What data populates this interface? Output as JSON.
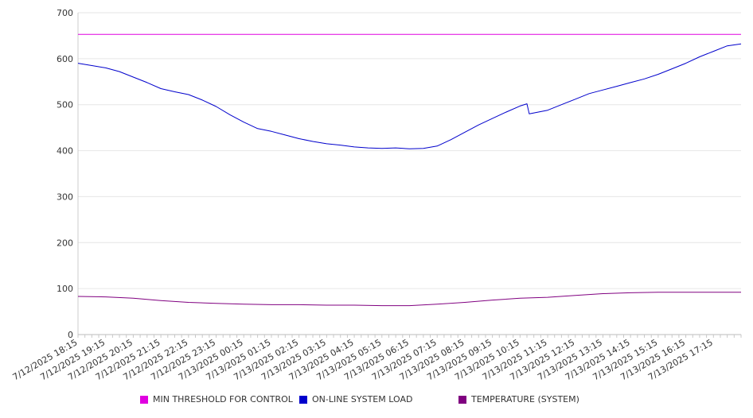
{
  "chart_data": {
    "type": "line",
    "title": "",
    "xlabel": "",
    "ylabel": "",
    "ylim": [
      0,
      700
    ],
    "yticks": [
      0,
      100,
      200,
      300,
      400,
      500,
      600,
      700
    ],
    "grid": true,
    "legend_position": "bottom",
    "x_labels": [
      "7/12/2025 18:15",
      "7/12/2025 19:15",
      "7/12/2025 20:15",
      "7/12/2025 21:15",
      "7/12/2025 22:15",
      "7/12/2025 23:15",
      "7/13/2025 00:15",
      "7/13/2025 01:15",
      "7/13/2025 02:15",
      "7/13/2025 03:15",
      "7/13/2025 04:15",
      "7/13/2025 05:15",
      "7/13/2025 06:15",
      "7/13/2025 07:15",
      "7/13/2025 08:15",
      "7/13/2025 09:15",
      "7/13/2025 10:15",
      "7/13/2025 11:15",
      "7/13/2025 12:15",
      "7/13/2025 13:15",
      "7/13/2025 14:15",
      "7/13/2025 15:15",
      "7/13/2025 16:15",
      "7/13/2025 17:15"
    ],
    "x_range": [
      "7/12/2025 18:15",
      "7/13/2025 18:15"
    ],
    "series": [
      {
        "name": "MIN THRESHOLD FOR CONTROL",
        "color": "#e000e0",
        "points": [
          [
            "7/12/2025 18:15",
            653
          ],
          [
            "7/13/2025 18:15",
            653
          ]
        ]
      },
      {
        "name": "ON-LINE SYSTEM LOAD",
        "color": "#0000cc",
        "points": [
          [
            "7/12/2025 18:15",
            590
          ],
          [
            "7/12/2025 18:45",
            585
          ],
          [
            "7/12/2025 19:15",
            580
          ],
          [
            "7/12/2025 19:45",
            572
          ],
          [
            "7/12/2025 20:15",
            560
          ],
          [
            "7/12/2025 20:45",
            548
          ],
          [
            "7/12/2025 21:15",
            535
          ],
          [
            "7/12/2025 21:45",
            528
          ],
          [
            "7/12/2025 22:15",
            522
          ],
          [
            "7/12/2025 22:45",
            510
          ],
          [
            "7/12/2025 23:15",
            496
          ],
          [
            "7/12/2025 23:45",
            478
          ],
          [
            "7/13/2025 00:15",
            462
          ],
          [
            "7/13/2025 00:45",
            448
          ],
          [
            "7/13/2025 01:15",
            442
          ],
          [
            "7/13/2025 01:45",
            434
          ],
          [
            "7/13/2025 02:15",
            426
          ],
          [
            "7/13/2025 02:45",
            420
          ],
          [
            "7/13/2025 03:15",
            415
          ],
          [
            "7/13/2025 03:45",
            412
          ],
          [
            "7/13/2025 04:15",
            408
          ],
          [
            "7/13/2025 04:45",
            406
          ],
          [
            "7/13/2025 05:15",
            405
          ],
          [
            "7/13/2025 05:45",
            406
          ],
          [
            "7/13/2025 06:15",
            404
          ],
          [
            "7/13/2025 06:45",
            405
          ],
          [
            "7/13/2025 07:15",
            410
          ],
          [
            "7/13/2025 07:45",
            424
          ],
          [
            "7/13/2025 08:15",
            440
          ],
          [
            "7/13/2025 08:45",
            456
          ],
          [
            "7/13/2025 09:15",
            470
          ],
          [
            "7/13/2025 09:45",
            484
          ],
          [
            "7/13/2025 10:15",
            497
          ],
          [
            "7/13/2025 10:30",
            502
          ],
          [
            "7/13/2025 10:35",
            480
          ],
          [
            "7/13/2025 11:15",
            488
          ],
          [
            "7/13/2025 11:45",
            500
          ],
          [
            "7/13/2025 12:15",
            512
          ],
          [
            "7/13/2025 12:45",
            524
          ],
          [
            "7/13/2025 13:15",
            532
          ],
          [
            "7/13/2025 13:45",
            540
          ],
          [
            "7/13/2025 14:15",
            548
          ],
          [
            "7/13/2025 14:45",
            556
          ],
          [
            "7/13/2025 15:15",
            566
          ],
          [
            "7/13/2025 15:45",
            578
          ],
          [
            "7/13/2025 16:15",
            590
          ],
          [
            "7/13/2025 16:45",
            604
          ],
          [
            "7/13/2025 17:15",
            616
          ],
          [
            "7/13/2025 17:45",
            628
          ],
          [
            "7/13/2025 18:15",
            632
          ]
        ]
      },
      {
        "name": "TEMPERATURE (SYSTEM)",
        "color": "#800080",
        "points": [
          [
            "7/12/2025 18:15",
            83
          ],
          [
            "7/12/2025 19:15",
            82
          ],
          [
            "7/12/2025 20:15",
            79
          ],
          [
            "7/12/2025 21:15",
            74
          ],
          [
            "7/12/2025 22:15",
            70
          ],
          [
            "7/12/2025 23:15",
            68
          ],
          [
            "7/13/2025 00:15",
            66
          ],
          [
            "7/13/2025 01:15",
            65
          ],
          [
            "7/13/2025 02:15",
            65
          ],
          [
            "7/13/2025 03:15",
            64
          ],
          [
            "7/13/2025 04:15",
            64
          ],
          [
            "7/13/2025 05:15",
            63
          ],
          [
            "7/13/2025 06:15",
            63
          ],
          [
            "7/13/2025 07:15",
            66
          ],
          [
            "7/13/2025 08:15",
            70
          ],
          [
            "7/13/2025 09:15",
            75
          ],
          [
            "7/13/2025 10:15",
            79
          ],
          [
            "7/13/2025 11:15",
            81
          ],
          [
            "7/13/2025 12:15",
            85
          ],
          [
            "7/13/2025 13:15",
            89
          ],
          [
            "7/13/2025 14:15",
            91
          ],
          [
            "7/13/2025 15:15",
            92
          ],
          [
            "7/13/2025 16:15",
            92
          ],
          [
            "7/13/2025 17:15",
            92
          ],
          [
            "7/13/2025 18:15",
            92
          ]
        ]
      }
    ]
  },
  "legend": [
    {
      "label": "MIN THRESHOLD FOR CONTROL",
      "color": "#e000e0"
    },
    {
      "label": "ON-LINE SYSTEM LOAD",
      "color": "#0000cc"
    },
    {
      "label": "TEMPERATURE (SYSTEM)",
      "color": "#800080"
    }
  ]
}
